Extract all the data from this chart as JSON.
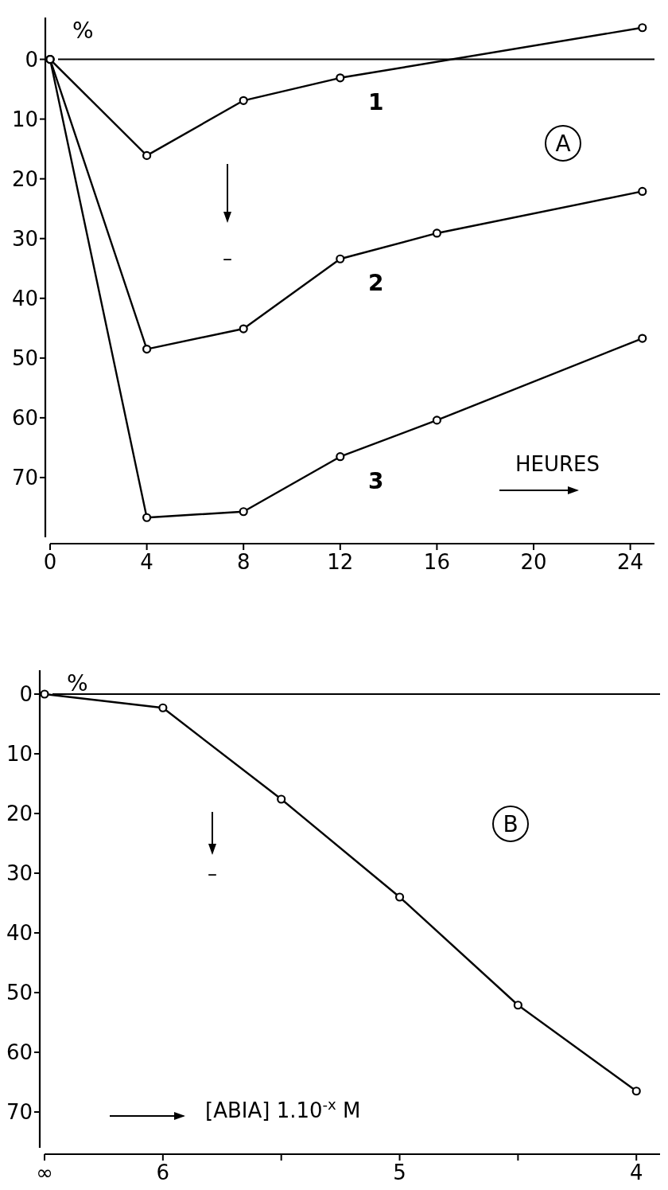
{
  "chart_data": [
    {
      "type": "line",
      "ylabel": "%",
      "xlabel": "HEURES",
      "annotations": [
        "A",
        "–"
      ],
      "xlim": [
        0,
        25
      ],
      "ylim": [
        80,
        -7
      ],
      "xticks": [
        0,
        4,
        8,
        12,
        16,
        20,
        24
      ],
      "yticks": [
        0,
        10,
        20,
        30,
        40,
        50,
        60,
        70
      ],
      "marker": "circle",
      "line_style": "solid",
      "grid": false,
      "ref_lines": [
        {
          "axis": "y",
          "value": 0
        }
      ],
      "series": [
        {
          "name": "1",
          "color": "#000000",
          "x": [
            0,
            4,
            8,
            12,
            24.5
          ],
          "values": [
            0,
            16.1,
            6.9,
            3.1,
            -5.3
          ]
        },
        {
          "name": "2",
          "color": "#000000",
          "x": [
            0,
            4,
            8,
            12,
            16,
            24.5
          ],
          "values": [
            0,
            48.5,
            45.1,
            33.4,
            29.1,
            22.1
          ]
        },
        {
          "name": "3",
          "color": "#000000",
          "x": [
            0,
            4,
            8,
            12,
            16,
            24.5
          ],
          "values": [
            0,
            76.7,
            75.7,
            66.5,
            60.4,
            46.7
          ]
        }
      ]
    },
    {
      "type": "line",
      "ylabel": "%",
      "xlabel": "[ABIA] 1.10$^{-x}$ M",
      "annotations": [
        "B",
        "–"
      ],
      "xlim": [
        6.5,
        3.9
      ],
      "ylim": [
        76,
        -4
      ],
      "xticks": [
        {
          "value": 6.5,
          "label": "∞"
        },
        6,
        {
          "value": 5.5,
          "label": null
        },
        5,
        {
          "value": 4.5,
          "label": null
        },
        4
      ],
      "yticks": [
        0,
        10,
        20,
        30,
        40,
        50,
        60,
        70
      ],
      "marker": "circle",
      "line_style": "solid",
      "grid": false,
      "ref_lines": [
        {
          "axis": "y",
          "value": 0
        }
      ],
      "series": [
        {
          "color": "#000000",
          "x": [
            6.5,
            6,
            5.5,
            5,
            4.5,
            4
          ],
          "values": [
            0,
            2.3,
            17.6,
            34,
            52.1,
            66.5
          ]
        }
      ]
    }
  ]
}
